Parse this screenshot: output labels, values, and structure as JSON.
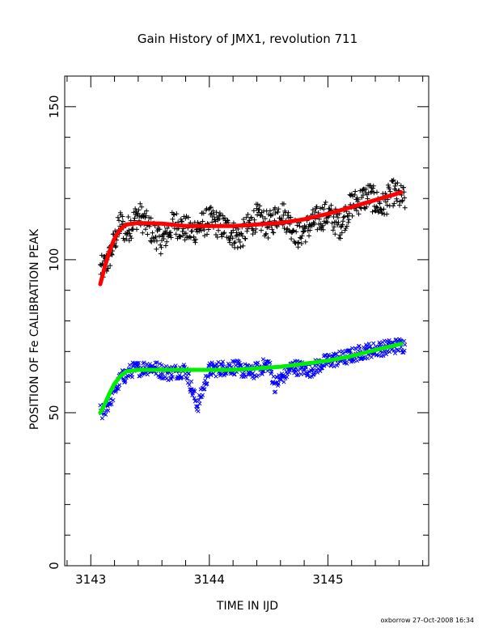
{
  "chart_data": {
    "type": "scatter",
    "title": "Gain History of JMX1, revolution 711",
    "xlabel": "TIME IN IJD",
    "ylabel": "POSITION OF Fe CALIBRATION PEAK",
    "xlim": [
      3142.78,
      3145.85
    ],
    "ylim": [
      0,
      160
    ],
    "x_ticks": [
      "3143",
      "3144",
      "3145"
    ],
    "x_tick_values": [
      3143,
      3144,
      3145
    ],
    "x_minor_step": 0.2,
    "y_ticks": [
      "0",
      "50",
      "100",
      "150"
    ],
    "y_tick_values": [
      0,
      50,
      100,
      150
    ],
    "y_minor_step": 10,
    "grid": false,
    "series": [
      {
        "marker": "plus",
        "color": "#000000",
        "style": "scatter",
        "x_range": [
          3143.08,
          3145.65
        ],
        "points": [
          [
            3143.1,
            97
          ],
          [
            3143.15,
            100
          ],
          [
            3143.2,
            106
          ],
          [
            3143.25,
            112
          ],
          [
            3143.3,
            109
          ],
          [
            3143.4,
            115
          ],
          [
            3143.5,
            110
          ],
          [
            3143.6,
            106
          ],
          [
            3143.7,
            112
          ],
          [
            3143.85,
            109
          ],
          [
            3144.0,
            113
          ],
          [
            3144.15,
            110
          ],
          [
            3144.25,
            107
          ],
          [
            3144.4,
            114
          ],
          [
            3144.5,
            111
          ],
          [
            3144.6,
            116
          ],
          [
            3144.75,
            108
          ],
          [
            3144.9,
            113
          ],
          [
            3145.0,
            115
          ],
          [
            3145.1,
            111
          ],
          [
            3145.2,
            118
          ],
          [
            3145.35,
            121
          ],
          [
            3145.45,
            117
          ],
          [
            3145.55,
            122
          ],
          [
            3145.62,
            120
          ]
        ]
      },
      {
        "marker": "x",
        "color": "#0000ff",
        "style": "scatter",
        "x_range": [
          3143.08,
          3145.65
        ],
        "points": [
          [
            3143.1,
            50
          ],
          [
            3143.15,
            53
          ],
          [
            3143.2,
            57
          ],
          [
            3143.25,
            61
          ],
          [
            3143.35,
            64
          ],
          [
            3143.5,
            65
          ],
          [
            3143.65,
            63
          ],
          [
            3143.8,
            64
          ],
          [
            3143.9,
            52
          ],
          [
            3144.0,
            64
          ],
          [
            3144.2,
            65
          ],
          [
            3144.35,
            63
          ],
          [
            3144.5,
            66
          ],
          [
            3144.55,
            59
          ],
          [
            3144.7,
            65
          ],
          [
            3144.85,
            64
          ],
          [
            3145.0,
            67
          ],
          [
            3145.15,
            68
          ],
          [
            3145.3,
            70
          ],
          [
            3145.45,
            71
          ],
          [
            3145.6,
            72
          ]
        ]
      },
      {
        "marker": "none",
        "color": "#ff0000",
        "style": "line",
        "points": [
          [
            3143.08,
            92
          ],
          [
            3143.12,
            98
          ],
          [
            3143.16,
            103
          ],
          [
            3143.2,
            107
          ],
          [
            3143.25,
            110
          ],
          [
            3143.3,
            111.5
          ],
          [
            3143.4,
            112
          ],
          [
            3143.6,
            111.8
          ],
          [
            3143.8,
            111
          ],
          [
            3144.0,
            111
          ],
          [
            3144.2,
            111
          ],
          [
            3144.4,
            111.5
          ],
          [
            3144.6,
            112
          ],
          [
            3144.8,
            113.2
          ],
          [
            3145.0,
            115
          ],
          [
            3145.2,
            117.2
          ],
          [
            3145.4,
            119.5
          ],
          [
            3145.62,
            122
          ]
        ]
      },
      {
        "marker": "none",
        "color": "#00ee00",
        "style": "line",
        "points": [
          [
            3143.08,
            50
          ],
          [
            3143.12,
            53
          ],
          [
            3143.16,
            56.5
          ],
          [
            3143.2,
            59.5
          ],
          [
            3143.25,
            62
          ],
          [
            3143.3,
            63.5
          ],
          [
            3143.4,
            64
          ],
          [
            3143.6,
            64
          ],
          [
            3143.8,
            64
          ],
          [
            3144.0,
            64
          ],
          [
            3144.2,
            64
          ],
          [
            3144.4,
            64.5
          ],
          [
            3144.6,
            65
          ],
          [
            3144.8,
            66
          ],
          [
            3145.0,
            67
          ],
          [
            3145.2,
            68.5
          ],
          [
            3145.4,
            70.5
          ],
          [
            3145.62,
            72.5
          ]
        ]
      }
    ]
  },
  "footer": "oxborrow 27-Oct-2008 16:34"
}
